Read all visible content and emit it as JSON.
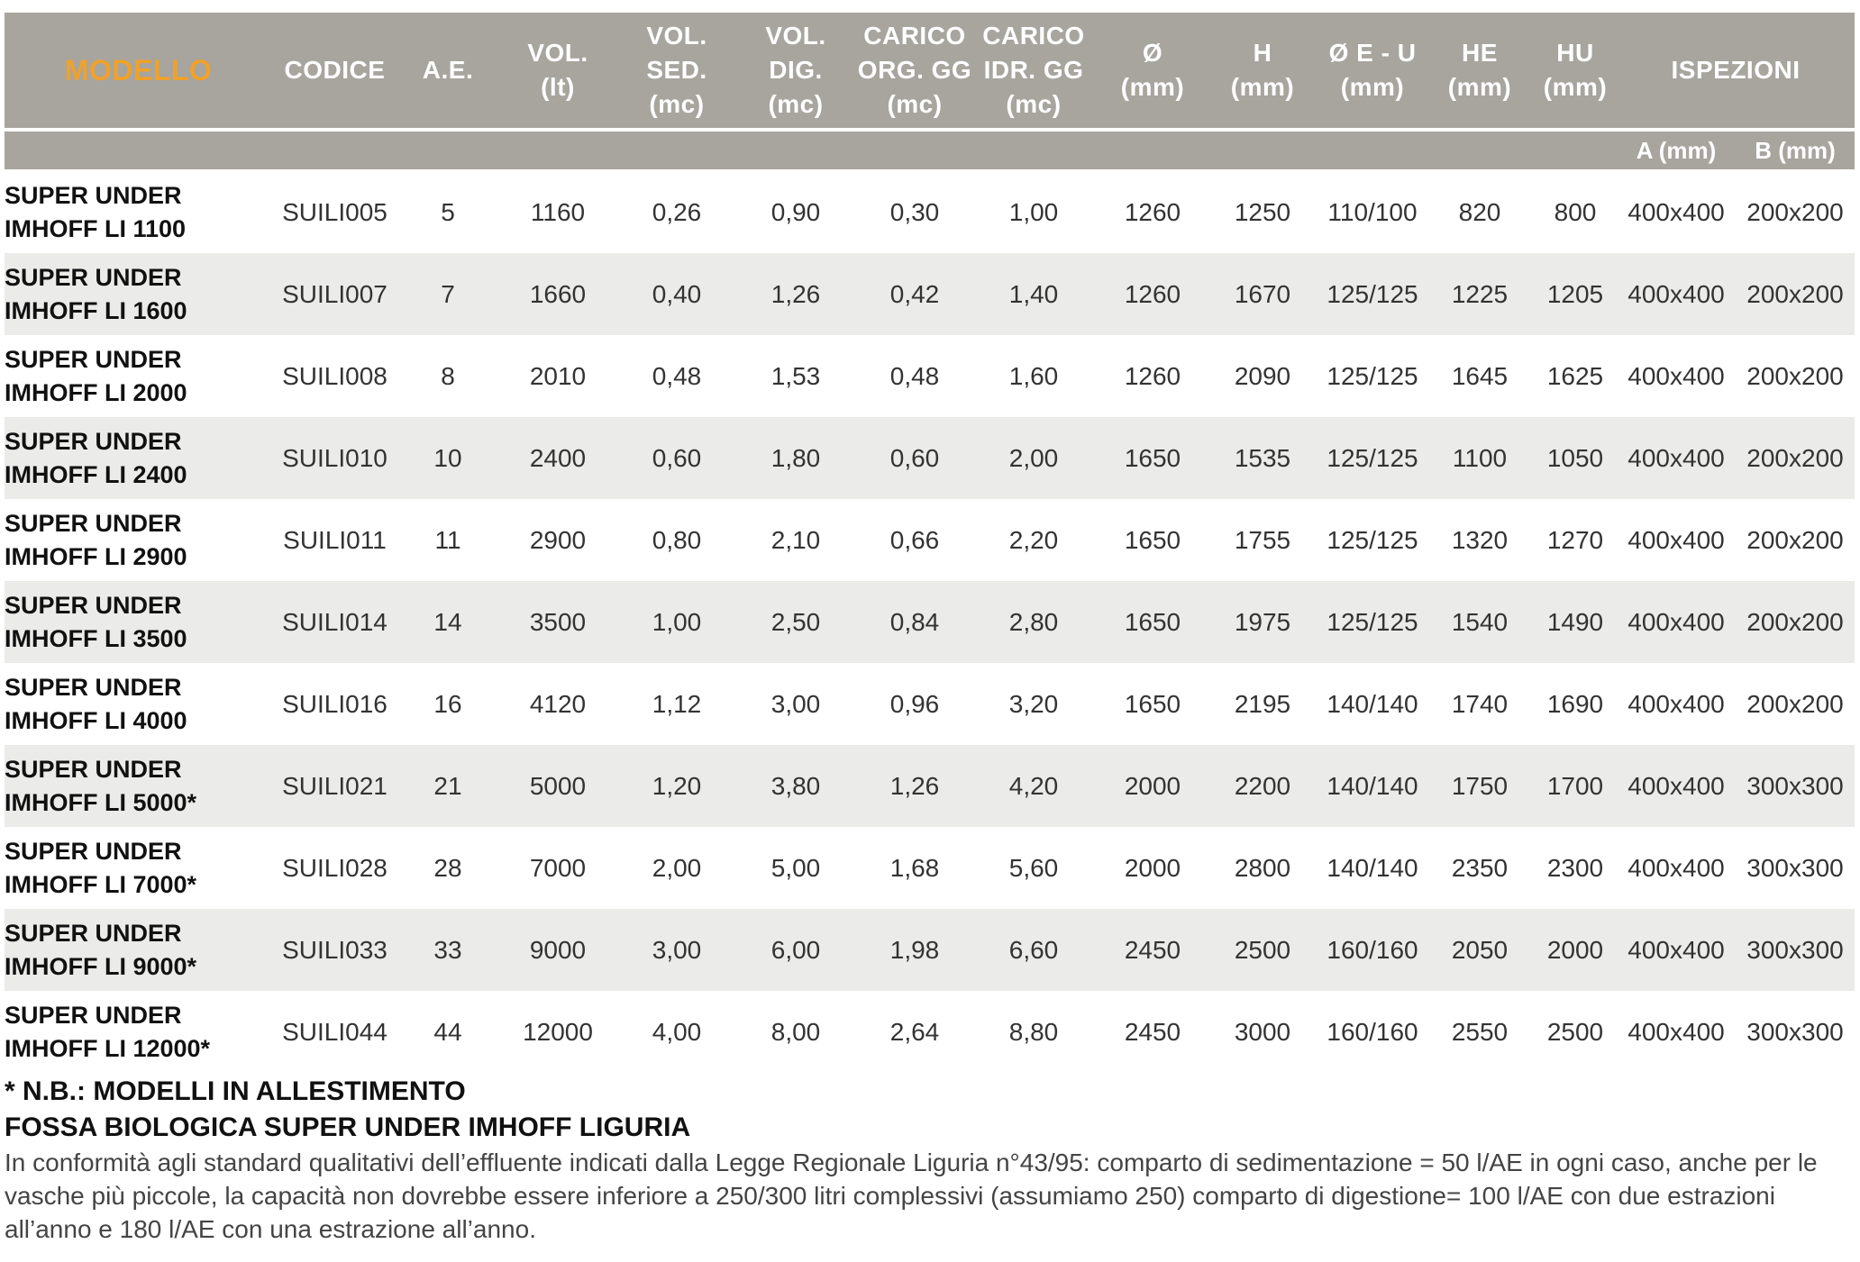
{
  "header": {
    "columns": [
      {
        "key": "modello",
        "label": "MODELLO"
      },
      {
        "key": "codice",
        "label": "CODICE"
      },
      {
        "key": "ae",
        "label": "A.E."
      },
      {
        "key": "vol",
        "label": "VOL.\n(lt)"
      },
      {
        "key": "vol_sed",
        "label": "VOL.\nSED.\n(mc)"
      },
      {
        "key": "vol_dig",
        "label": "VOL.\nDIG.\n(mc)"
      },
      {
        "key": "carico_org",
        "label": "CARICO\nORG. GG\n(mc)"
      },
      {
        "key": "carico_idr",
        "label": "CARICO\nIDR. GG\n(mc)"
      },
      {
        "key": "diam",
        "label": "Ø\n(mm)"
      },
      {
        "key": "h",
        "label": "H\n(mm)"
      },
      {
        "key": "eu",
        "label": "Ø E - U\n(mm)"
      },
      {
        "key": "he",
        "label": "HE\n(mm)"
      },
      {
        "key": "hu",
        "label": "HU\n(mm)"
      },
      {
        "key": "ispezioni",
        "label": "ISPEZIONI"
      }
    ],
    "sub": {
      "a": "A (mm)",
      "b": "B (mm)"
    }
  },
  "rows": [
    {
      "modello": "SUPER UNDER\nIMHOFF LI 1100",
      "codice": "SUILI005",
      "ae": "5",
      "vol": "1160",
      "vol_sed": "0,26",
      "vol_dig": "0,90",
      "carico_org": "0,30",
      "carico_idr": "1,00",
      "diam": "1260",
      "h": "1250",
      "eu": "110/100",
      "he": "820",
      "hu": "800",
      "a": "400x400",
      "b": "200x200"
    },
    {
      "modello": "SUPER UNDER\nIMHOFF LI  1600",
      "codice": "SUILI007",
      "ae": "7",
      "vol": "1660",
      "vol_sed": "0,40",
      "vol_dig": "1,26",
      "carico_org": "0,42",
      "carico_idr": "1,40",
      "diam": "1260",
      "h": "1670",
      "eu": "125/125",
      "he": "1225",
      "hu": "1205",
      "a": "400x400",
      "b": "200x200"
    },
    {
      "modello": "SUPER UNDER\nIMHOFF LI  2000",
      "codice": "SUILI008",
      "ae": "8",
      "vol": "2010",
      "vol_sed": "0,48",
      "vol_dig": "1,53",
      "carico_org": "0,48",
      "carico_idr": "1,60",
      "diam": "1260",
      "h": "2090",
      "eu": "125/125",
      "he": "1645",
      "hu": "1625",
      "a": "400x400",
      "b": "200x200"
    },
    {
      "modello": "SUPER UNDER\nIMHOFF LI  2400",
      "codice": "SUILI010",
      "ae": "10",
      "vol": "2400",
      "vol_sed": "0,60",
      "vol_dig": "1,80",
      "carico_org": "0,60",
      "carico_idr": "2,00",
      "diam": "1650",
      "h": "1535",
      "eu": "125/125",
      "he": "1100",
      "hu": "1050",
      "a": "400x400",
      "b": "200x200"
    },
    {
      "modello": "SUPER UNDER\nIMHOFF LI  2900",
      "codice": "SUILI011",
      "ae": "11",
      "vol": "2900",
      "vol_sed": "0,80",
      "vol_dig": "2,10",
      "carico_org": "0,66",
      "carico_idr": "2,20",
      "diam": "1650",
      "h": "1755",
      "eu": "125/125",
      "he": "1320",
      "hu": "1270",
      "a": "400x400",
      "b": "200x200"
    },
    {
      "modello": "SUPER UNDER\nIMHOFF LI  3500",
      "codice": "SUILI014",
      "ae": "14",
      "vol": "3500",
      "vol_sed": "1,00",
      "vol_dig": "2,50",
      "carico_org": "0,84",
      "carico_idr": "2,80",
      "diam": "1650",
      "h": "1975",
      "eu": "125/125",
      "he": "1540",
      "hu": "1490",
      "a": "400x400",
      "b": "200x200"
    },
    {
      "modello": "SUPER UNDER\nIMHOFF LI 4000",
      "codice": "SUILI016",
      "ae": "16",
      "vol": "4120",
      "vol_sed": "1,12",
      "vol_dig": "3,00",
      "carico_org": "0,96",
      "carico_idr": "3,20",
      "diam": "1650",
      "h": "2195",
      "eu": "140/140",
      "he": "1740",
      "hu": "1690",
      "a": "400x400",
      "b": "200x200"
    },
    {
      "modello": "SUPER UNDER\nIMHOFF LI 5000*",
      "codice": "SUILI021",
      "ae": "21",
      "vol": "5000",
      "vol_sed": "1,20",
      "vol_dig": "3,80",
      "carico_org": "1,26",
      "carico_idr": "4,20",
      "diam": "2000",
      "h": "2200",
      "eu": "140/140",
      "he": "1750",
      "hu": "1700",
      "a": "400x400",
      "b": "300x300"
    },
    {
      "modello": "SUPER UNDER\nIMHOFF LI 7000*",
      "codice": "SUILI028",
      "ae": "28",
      "vol": "7000",
      "vol_sed": "2,00",
      "vol_dig": "5,00",
      "carico_org": "1,68",
      "carico_idr": "5,60",
      "diam": "2000",
      "h": "2800",
      "eu": "140/140",
      "he": "2350",
      "hu": "2300",
      "a": "400x400",
      "b": "300x300"
    },
    {
      "modello": "SUPER UNDER\nIMHOFF LI 9000*",
      "codice": "SUILI033",
      "ae": "33",
      "vol": "9000",
      "vol_sed": "3,00",
      "vol_dig": "6,00",
      "carico_org": "1,98",
      "carico_idr": "6,60",
      "diam": "2450",
      "h": "2500",
      "eu": "160/160",
      "he": "2050",
      "hu": "2000",
      "a": "400x400",
      "b": "300x300"
    },
    {
      "modello": "SUPER UNDER\nIMHOFF LI 12000*",
      "codice": "SUILI044",
      "ae": "44",
      "vol": "12000",
      "vol_sed": "4,00",
      "vol_dig": "8,00",
      "carico_org": "2,64",
      "carico_idr": "8,80",
      "diam": "2450",
      "h": "3000",
      "eu": "160/160",
      "he": "2550",
      "hu": "2500",
      "a": "400x400",
      "b": "300x300"
    }
  ],
  "notes": {
    "nb": "* N.B.: MODELLI IN ALLESTIMENTO",
    "title": "FOSSA BIOLOGICA SUPER UNDER IMHOFF LIGURIA",
    "paragraph": "In conformità agli standard qualitativi dell’effluente indicati dalla Legge Regionale Liguria n°43/95: comparto di sedimentazione = 50 l/AE in ogni caso, anche per le vasche più piccole, la capacità non dovrebbe essere inferiore a 250/300 litri complessivi (assumiamo 250) comparto di digestione= 100 l/AE con due estrazioni all’anno e 180 l/AE con una estrazione all’anno."
  },
  "colors": {
    "header_bg": "#a7a59e",
    "model_label": "#f0a12a",
    "row_shade": "#ebebea"
  }
}
